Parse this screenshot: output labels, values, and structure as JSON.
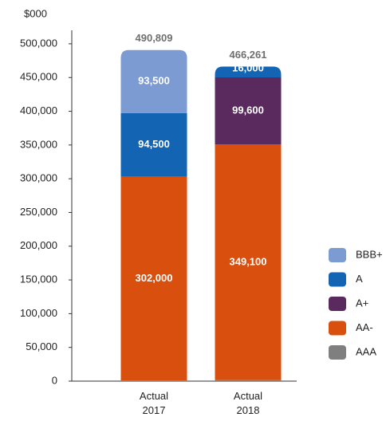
{
  "chart_data": {
    "type": "stacked_bar",
    "unit_label": "$000",
    "categories": [
      "Actual 2017",
      "Actual 2018"
    ],
    "series": [
      {
        "name": "AAA",
        "color": "#7f7f7f",
        "values": [
          809,
          1561
        ],
        "value_labels": [
          "809",
          "1,561"
        ]
      },
      {
        "name": "AA-",
        "color": "#d9500e",
        "values": [
          302000,
          349100
        ],
        "value_labels": [
          "302,000",
          "349,100"
        ]
      },
      {
        "name": "A+",
        "color": "#5a2a5e",
        "values": [
          null,
          99600
        ],
        "value_labels": [
          null,
          "99,600"
        ]
      },
      {
        "name": "A",
        "color": "#1464b4",
        "values": [
          94500,
          16000
        ],
        "value_labels": [
          "94,500",
          "16,000"
        ]
      },
      {
        "name": "BBB+",
        "color": "#7b9bd2",
        "values": [
          93500,
          null
        ],
        "value_labels": [
          "93,500",
          null
        ]
      }
    ],
    "totals": {
      "values": [
        490809,
        466261
      ],
      "value_labels": [
        "490,809",
        "466,261"
      ]
    },
    "ylim": [
      0,
      520000
    ],
    "yticks": [
      0,
      {
        "value": 50000,
        "label": "50,000"
      },
      {
        "value": 100000,
        "label": "100,000"
      },
      {
        "value": 150000,
        "label": "150,000"
      },
      {
        "value": 200000,
        "label": "200,000"
      },
      {
        "value": 250000,
        "label": "250,000"
      },
      {
        "value": 300000,
        "label": "300,000"
      },
      {
        "value": 350000,
        "label": "350,000"
      },
      {
        "value": 400000,
        "label": "400,000"
      },
      {
        "value": 450000,
        "label": "450,000"
      },
      {
        "value": 500000,
        "label": "500,000"
      }
    ],
    "legend": "right"
  }
}
